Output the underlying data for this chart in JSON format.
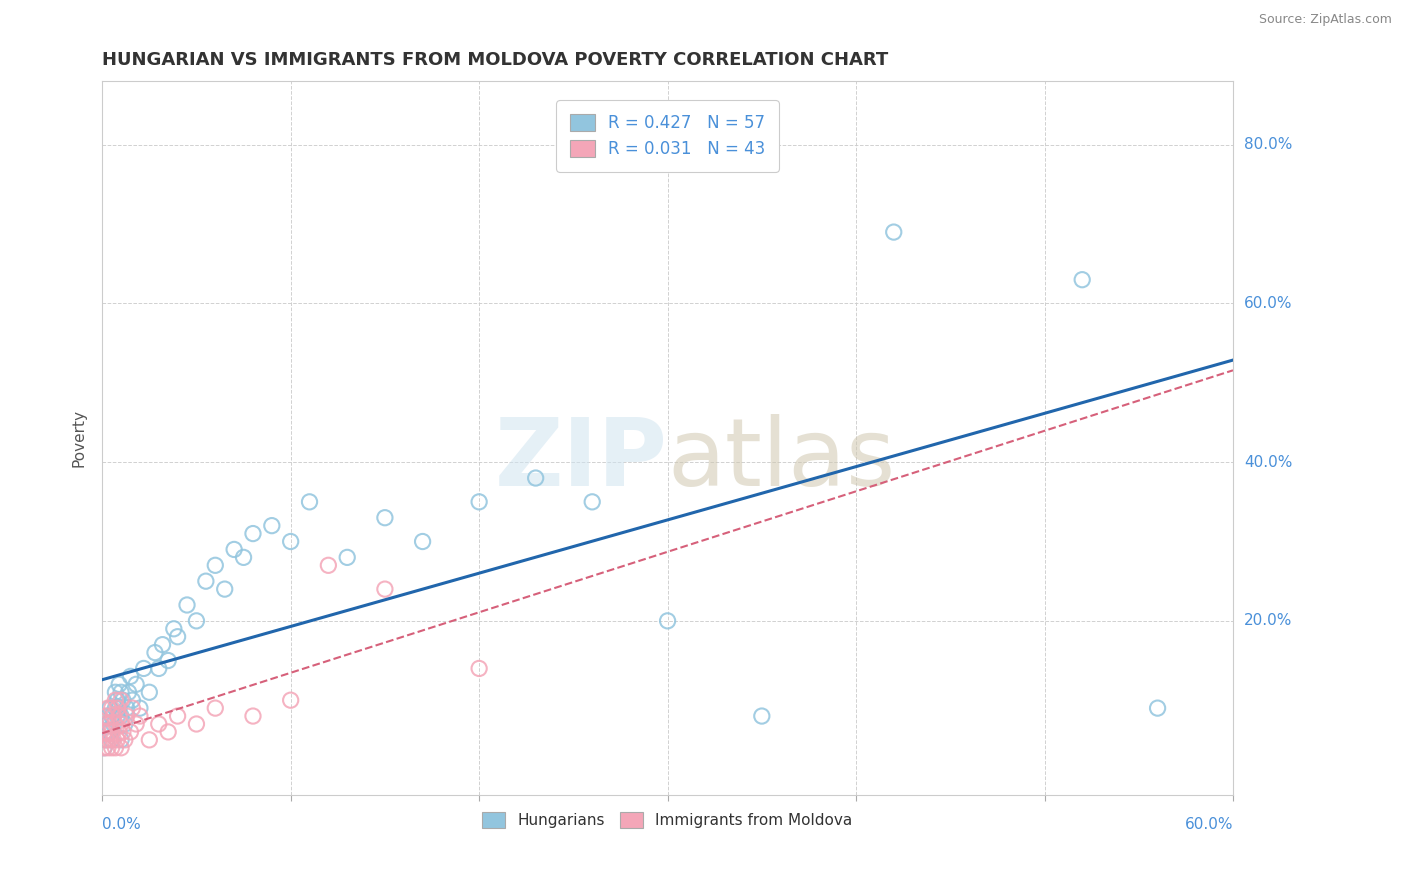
{
  "title": "HUNGARIAN VS IMMIGRANTS FROM MOLDOVA POVERTY CORRELATION CHART",
  "source": "Source: ZipAtlas.com",
  "ylabel": "Poverty",
  "xlim": [
    0.0,
    0.6
  ],
  "ylim": [
    -0.02,
    0.88
  ],
  "legend1_R": "0.427",
  "legend1_N": "57",
  "legend2_R": "0.031",
  "legend2_N": "43",
  "blue_color": "#92c5de",
  "pink_color": "#f4a6b8",
  "line_blue": "#2166ac",
  "line_pink": "#d6607a",
  "background_color": "#ffffff",
  "grid_color": "#cccccc",
  "hung_x": [
    0.001,
    0.002,
    0.002,
    0.003,
    0.003,
    0.004,
    0.004,
    0.005,
    0.005,
    0.006,
    0.007,
    0.007,
    0.008,
    0.008,
    0.009,
    0.009,
    0.01,
    0.01,
    0.01,
    0.011,
    0.012,
    0.013,
    0.014,
    0.015,
    0.016,
    0.018,
    0.02,
    0.022,
    0.025,
    0.028,
    0.03,
    0.032,
    0.035,
    0.038,
    0.04,
    0.045,
    0.05,
    0.055,
    0.06,
    0.065,
    0.07,
    0.075,
    0.08,
    0.09,
    0.1,
    0.11,
    0.13,
    0.15,
    0.17,
    0.2,
    0.23,
    0.26,
    0.3,
    0.35,
    0.42,
    0.52,
    0.56
  ],
  "hung_y": [
    0.04,
    0.06,
    0.05,
    0.07,
    0.08,
    0.06,
    0.09,
    0.05,
    0.08,
    0.07,
    0.09,
    0.11,
    0.08,
    0.1,
    0.09,
    0.12,
    0.05,
    0.08,
    0.11,
    0.1,
    0.07,
    0.09,
    0.11,
    0.13,
    0.1,
    0.12,
    0.09,
    0.14,
    0.11,
    0.16,
    0.14,
    0.17,
    0.15,
    0.19,
    0.18,
    0.22,
    0.2,
    0.25,
    0.27,
    0.24,
    0.29,
    0.28,
    0.31,
    0.32,
    0.3,
    0.35,
    0.28,
    0.33,
    0.3,
    0.35,
    0.38,
    0.35,
    0.2,
    0.08,
    0.69,
    0.63,
    0.09
  ],
  "mold_x": [
    0.001,
    0.001,
    0.002,
    0.002,
    0.002,
    0.003,
    0.003,
    0.003,
    0.004,
    0.004,
    0.005,
    0.005,
    0.005,
    0.006,
    0.006,
    0.007,
    0.007,
    0.007,
    0.008,
    0.008,
    0.009,
    0.009,
    0.01,
    0.01,
    0.01,
    0.011,
    0.012,
    0.013,
    0.015,
    0.016,
    0.018,
    0.02,
    0.025,
    0.03,
    0.035,
    0.04,
    0.05,
    0.06,
    0.08,
    0.1,
    0.12,
    0.15,
    0.2
  ],
  "mold_y": [
    0.04,
    0.06,
    0.05,
    0.07,
    0.08,
    0.04,
    0.06,
    0.09,
    0.05,
    0.07,
    0.04,
    0.06,
    0.09,
    0.05,
    0.08,
    0.04,
    0.07,
    0.1,
    0.05,
    0.09,
    0.06,
    0.08,
    0.04,
    0.07,
    0.1,
    0.06,
    0.05,
    0.08,
    0.06,
    0.09,
    0.07,
    0.08,
    0.05,
    0.07,
    0.06,
    0.08,
    0.07,
    0.09,
    0.08,
    0.1,
    0.27,
    0.24,
    0.14
  ]
}
